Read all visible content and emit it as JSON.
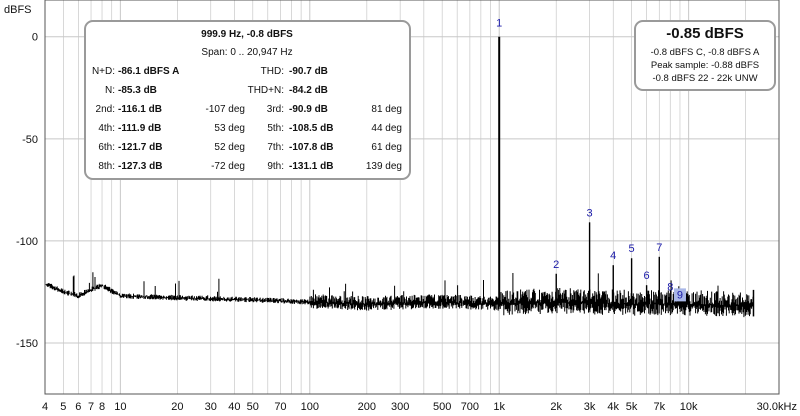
{
  "chart_data": {
    "type": "line",
    "ylabel": "dBFS",
    "xlim": [
      4,
      30000
    ],
    "ylim": [
      -175,
      18
    ],
    "x_scale": "log",
    "grid": true,
    "x_ticks": [
      {
        "v": 4,
        "label": "4"
      },
      {
        "v": 5,
        "label": "5"
      },
      {
        "v": 6,
        "label": "6"
      },
      {
        "v": 7,
        "label": "7"
      },
      {
        "v": 8,
        "label": "8"
      },
      {
        "v": 10,
        "label": "10"
      },
      {
        "v": 20,
        "label": "20"
      },
      {
        "v": 30,
        "label": "30"
      },
      {
        "v": 40,
        "label": "40"
      },
      {
        "v": 50,
        "label": "50"
      },
      {
        "v": 70,
        "label": "70"
      },
      {
        "v": 100,
        "label": "100"
      },
      {
        "v": 200,
        "label": "200"
      },
      {
        "v": 300,
        "label": "300"
      },
      {
        "v": 500,
        "label": "500"
      },
      {
        "v": 700,
        "label": "700"
      },
      {
        "v": 1000,
        "label": "1k"
      },
      {
        "v": 2000,
        "label": "2k"
      },
      {
        "v": 3000,
        "label": "3k"
      },
      {
        "v": 4000,
        "label": "4k"
      },
      {
        "v": 5000,
        "label": "5k"
      },
      {
        "v": 7000,
        "label": "7k"
      },
      {
        "v": 10000,
        "label": "10k"
      },
      {
        "v": 30000,
        "label": "30.0kHz"
      }
    ],
    "y_ticks": [
      {
        "v": 0,
        "label": "0"
      },
      {
        "v": -50,
        "label": "-50"
      },
      {
        "v": -100,
        "label": "-100"
      },
      {
        "v": -150,
        "label": "-150"
      }
    ],
    "harmonic_markers": [
      {
        "label": "1",
        "x": 1000,
        "y": 0
      },
      {
        "label": "2",
        "x": 2000,
        "y": -116.1
      },
      {
        "label": "3",
        "x": 3000,
        "y": -90.9
      },
      {
        "label": "4",
        "x": 4000,
        "y": -111.9
      },
      {
        "label": "5",
        "x": 5000,
        "y": -108.5
      },
      {
        "label": "6",
        "x": 6000,
        "y": -121.7
      },
      {
        "label": "7",
        "x": 7000,
        "y": -107.8
      },
      {
        "label": "8",
        "x": 8000,
        "y": -127.3
      },
      {
        "label": "9",
        "x": 9000,
        "y": -131.1
      }
    ],
    "noise_floor_points": [
      [
        4,
        -121
      ],
      [
        5,
        -125
      ],
      [
        6,
        -127
      ],
      [
        7,
        -124
      ],
      [
        8,
        -122
      ],
      [
        10,
        -127
      ],
      [
        20,
        -128
      ],
      [
        50,
        -129
      ],
      [
        100,
        -130
      ],
      [
        200,
        -131
      ],
      [
        500,
        -130
      ],
      [
        1000,
        -131
      ],
      [
        2000,
        -130
      ],
      [
        5000,
        -131
      ],
      [
        10000,
        -131
      ],
      [
        22000,
        -132
      ]
    ]
  },
  "stats": {
    "header": "999.9 Hz, -0.8 dBFS",
    "span": "Span: 0 .. 20,947 Hz",
    "nd_label": "N+D:",
    "nd_value": "-86.1 dBFS A",
    "thd_label": "THD:",
    "thd_value": "-90.7 dB",
    "n_label": "N:",
    "n_value": "-85.3 dB",
    "thdn_label": "THD+N:",
    "thdn_value": "-84.2 dB",
    "rows": [
      {
        "l1": "2nd:",
        "v1": "-116.1 dB",
        "p1": "-107 deg",
        "l2": "3rd:",
        "v2": "-90.9 dB",
        "p2": "81 deg"
      },
      {
        "l1": "4th:",
        "v1": "-111.9 dB",
        "p1": "53 deg",
        "l2": "5th:",
        "v2": "-108.5 dB",
        "p2": "44 deg"
      },
      {
        "l1": "6th:",
        "v1": "-121.7 dB",
        "p1": "52 deg",
        "l2": "7th:",
        "v2": "-107.8 dB",
        "p2": "61 deg"
      },
      {
        "l1": "8th:",
        "v1": "-127.3 dB",
        "p1": "-72 deg",
        "l2": "9th:",
        "v2": "-131.1 dB",
        "p2": "139 deg"
      }
    ]
  },
  "level": {
    "main": "-0.85 dBFS",
    "line1": "-0.8 dBFS C, -0.8 dBFS A",
    "line2": "Peak sample: -0.88 dBFS",
    "line3": "-0.8 dBFS 22 - 22k UNW"
  },
  "colors": {
    "trace": "#000000",
    "grid": "#c8c8c8",
    "harmonic_label": "#1a1aa8",
    "harmonic_box": "#aab8e8"
  }
}
